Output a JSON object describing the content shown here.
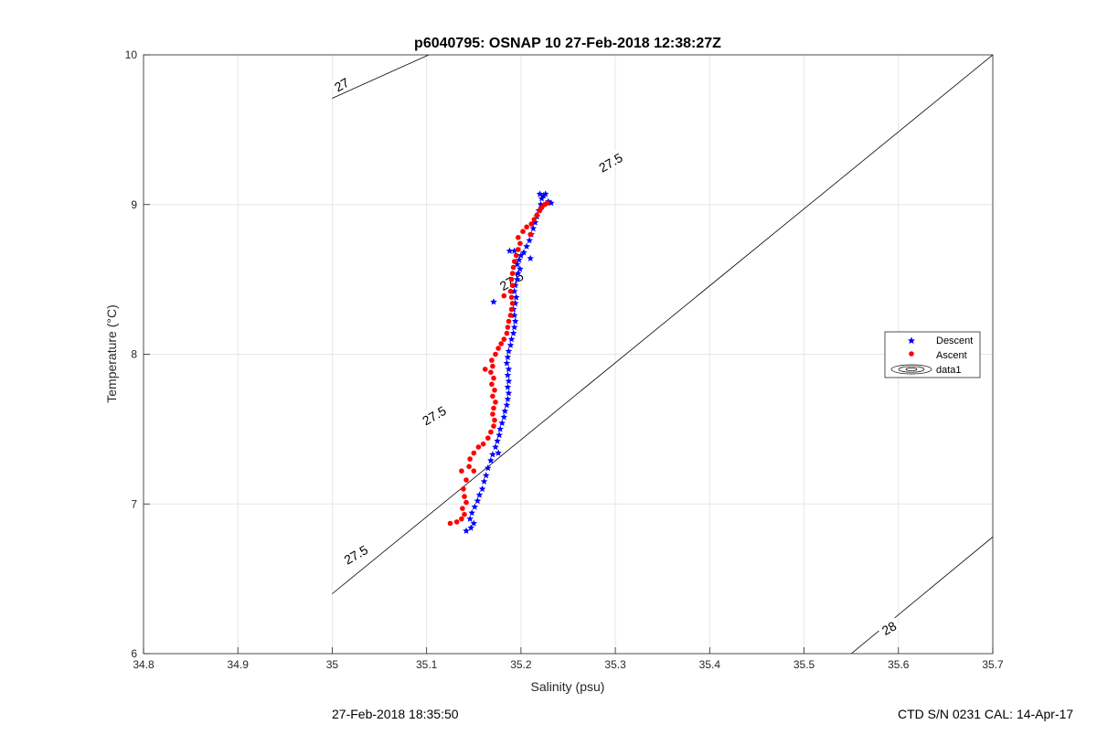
{
  "chart_data": {
    "type": "scatter",
    "title": "p6040795: OSNAP 10 27-Feb-2018 12:38:27Z",
    "xlabel": "Salinity (psu)",
    "ylabel": "Temperature (°C)",
    "xlim": [
      34.8,
      35.7
    ],
    "ylim": [
      6,
      10
    ],
    "xticks": [
      "34.8",
      "34.9",
      "35",
      "35.1",
      "35.2",
      "35.3",
      "35.4",
      "35.5",
      "35.6",
      "35.7"
    ],
    "yticks": [
      "6",
      "7",
      "8",
      "9",
      "10"
    ],
    "grid": true,
    "legend_position": "right",
    "series": [
      {
        "name": "Descent",
        "color": "#0000ff",
        "marker": "star",
        "points": [
          [
            35.142,
            6.82
          ],
          [
            35.147,
            6.84
          ],
          [
            35.15,
            6.87
          ],
          [
            35.146,
            6.9
          ],
          [
            35.148,
            6.94
          ],
          [
            35.151,
            6.98
          ],
          [
            35.154,
            7.02
          ],
          [
            35.156,
            7.06
          ],
          [
            35.159,
            7.1
          ],
          [
            35.161,
            7.15
          ],
          [
            35.163,
            7.19
          ],
          [
            35.165,
            7.24
          ],
          [
            35.168,
            7.29
          ],
          [
            35.17,
            7.33
          ],
          [
            35.173,
            7.38
          ],
          [
            35.175,
            7.42
          ],
          [
            35.177,
            7.46
          ],
          [
            35.178,
            7.5
          ],
          [
            35.18,
            7.54
          ],
          [
            35.182,
            7.58
          ],
          [
            35.183,
            7.62
          ],
          [
            35.185,
            7.66
          ],
          [
            35.186,
            7.7
          ],
          [
            35.187,
            7.74
          ],
          [
            35.186,
            7.78
          ],
          [
            35.187,
            7.82
          ],
          [
            35.186,
            7.86
          ],
          [
            35.187,
            7.9
          ],
          [
            35.185,
            7.94
          ],
          [
            35.186,
            7.98
          ],
          [
            35.187,
            8.02
          ],
          [
            35.189,
            8.06
          ],
          [
            35.19,
            8.1
          ],
          [
            35.192,
            8.14
          ],
          [
            35.193,
            8.18
          ],
          [
            35.194,
            8.22
          ],
          [
            35.193,
            8.26
          ],
          [
            35.192,
            8.3
          ],
          [
            35.194,
            8.34
          ],
          [
            35.195,
            8.38
          ],
          [
            35.193,
            8.42
          ],
          [
            35.194,
            8.46
          ],
          [
            35.196,
            8.5
          ],
          [
            35.197,
            8.54
          ],
          [
            35.199,
            8.57
          ],
          [
            35.196,
            8.6
          ],
          [
            35.198,
            8.63
          ],
          [
            35.2,
            8.66
          ],
          [
            35.203,
            8.68
          ],
          [
            35.193,
            8.69
          ],
          [
            35.188,
            8.69
          ],
          [
            35.21,
            8.64
          ],
          [
            35.206,
            8.72
          ],
          [
            35.209,
            8.76
          ],
          [
            35.211,
            8.8
          ],
          [
            35.213,
            8.84
          ],
          [
            35.215,
            8.88
          ],
          [
            35.217,
            8.92
          ],
          [
            35.219,
            8.96
          ],
          [
            35.221,
            9.0
          ],
          [
            35.222,
            9.04
          ],
          [
            35.224,
            9.06
          ],
          [
            35.226,
            9.07
          ],
          [
            35.22,
            9.07
          ],
          [
            35.229,
            9.02
          ],
          [
            35.232,
            9.01
          ],
          [
            35.176,
            7.34
          ],
          [
            35.171,
            8.35
          ]
        ]
      },
      {
        "name": "Ascent",
        "color": "#ff0000",
        "marker": "dot",
        "points": [
          [
            35.125,
            6.87
          ],
          [
            35.132,
            6.88
          ],
          [
            35.137,
            6.9
          ],
          [
            35.14,
            6.93
          ],
          [
            35.138,
            6.97
          ],
          [
            35.142,
            7.01
          ],
          [
            35.14,
            7.05
          ],
          [
            35.139,
            7.1
          ],
          [
            35.142,
            7.16
          ],
          [
            35.137,
            7.22
          ],
          [
            35.145,
            7.25
          ],
          [
            35.15,
            7.22
          ],
          [
            35.146,
            7.3
          ],
          [
            35.15,
            7.34
          ],
          [
            35.155,
            7.38
          ],
          [
            35.16,
            7.4
          ],
          [
            35.165,
            7.44
          ],
          [
            35.168,
            7.48
          ],
          [
            35.171,
            7.52
          ],
          [
            35.172,
            7.56
          ],
          [
            35.17,
            7.6
          ],
          [
            35.171,
            7.64
          ],
          [
            35.173,
            7.68
          ],
          [
            35.17,
            7.72
          ],
          [
            35.172,
            7.76
          ],
          [
            35.169,
            7.8
          ],
          [
            35.171,
            7.84
          ],
          [
            35.168,
            7.88
          ],
          [
            35.17,
            7.92
          ],
          [
            35.169,
            7.96
          ],
          [
            35.173,
            8.0
          ],
          [
            35.176,
            8.04
          ],
          [
            35.179,
            8.07
          ],
          [
            35.182,
            8.1
          ],
          [
            35.185,
            8.14
          ],
          [
            35.186,
            8.18
          ],
          [
            35.187,
            8.22
          ],
          [
            35.189,
            8.26
          ],
          [
            35.19,
            8.3
          ],
          [
            35.191,
            8.34
          ],
          [
            35.19,
            8.38
          ],
          [
            35.189,
            8.42
          ],
          [
            35.191,
            8.46
          ],
          [
            35.19,
            8.5
          ],
          [
            35.191,
            8.54
          ],
          [
            35.192,
            8.58
          ],
          [
            35.193,
            8.62
          ],
          [
            35.195,
            8.66
          ],
          [
            35.197,
            8.7
          ],
          [
            35.199,
            8.74
          ],
          [
            35.197,
            8.78
          ],
          [
            35.202,
            8.82
          ],
          [
            35.206,
            8.85
          ],
          [
            35.211,
            8.87
          ],
          [
            35.214,
            8.9
          ],
          [
            35.217,
            8.93
          ],
          [
            35.22,
            8.96
          ],
          [
            35.222,
            8.98
          ],
          [
            35.225,
            9.0
          ],
          [
            35.228,
            9.01
          ],
          [
            35.21,
            8.8
          ],
          [
            35.182,
            8.39
          ],
          [
            35.162,
            7.9
          ]
        ]
      }
    ],
    "contours": [
      {
        "label": "27",
        "points": [
          [
            35.0,
            9.71
          ],
          [
            35.3,
            10.56
          ]
        ]
      },
      {
        "label": "27.5",
        "points": [
          [
            35.0,
            6.4
          ],
          [
            35.7,
            10.0
          ]
        ]
      },
      {
        "label": "28",
        "points": [
          [
            35.5,
            5.74
          ],
          [
            35.7,
            6.78
          ]
        ]
      }
    ],
    "contour_labels": [
      {
        "text": "27",
        "at": [
          35.01,
          9.8
        ]
      },
      {
        "text": "27.5",
        "at": [
          35.025,
          6.66
        ]
      },
      {
        "text": "27.5",
        "at": [
          35.108,
          7.59
        ]
      },
      {
        "text": "27.5",
        "at": [
          35.19,
          8.49
        ]
      },
      {
        "text": "27.5",
        "at": [
          35.295,
          9.28
        ]
      },
      {
        "text": "28",
        "at": [
          35.59,
          6.17
        ]
      }
    ],
    "legend": [
      "Descent",
      "Ascent",
      "data1"
    ]
  },
  "footer": {
    "left": "27-Feb-2018 18:35:50",
    "right": "CTD S/N 0231  CAL: 14-Apr-17"
  }
}
